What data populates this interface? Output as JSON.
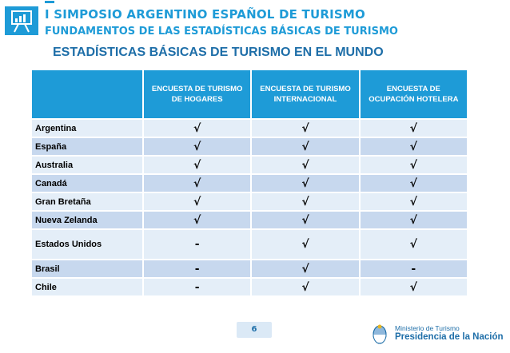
{
  "header": {
    "title": "I SIMPOSIO ARGENTINO ESPAÑOL DE TURISMO",
    "subtitle": "FUNDAMENTOS DE LAS ESTADÍSTICAS BÁSICAS DE TURISMO",
    "logo_icon": "chart-presentation-icon",
    "accent_color": "#1e9bd7"
  },
  "slide_title": "ESTADÍSTICAS BÁSICAS DE TURISMO EN EL MUNDO",
  "table": {
    "columns": [
      "",
      "ENCUESTA DE TURISMO DE HOGARES",
      "ENCUESTA DE TURISMO INTERNACIONAL",
      "ENCUESTA DE OCUPACIÓN HOTELERA"
    ],
    "rows": [
      [
        "Argentina",
        "√",
        "√",
        "√"
      ],
      [
        "España",
        "√",
        "√",
        "√"
      ],
      [
        "Australia",
        "√",
        "√",
        "√"
      ],
      [
        "Canadá",
        "√",
        "√",
        "√"
      ],
      [
        "Gran Bretaña",
        "√",
        "√",
        "√"
      ],
      [
        "Nueva Zelanda",
        "√",
        "√",
        "√"
      ],
      [
        "Estados Unidos",
        "-",
        "√",
        "√"
      ],
      [
        "Brasil",
        "-",
        "√",
        "-"
      ],
      [
        "Chile",
        "-",
        "√",
        "√"
      ]
    ]
  },
  "footer": {
    "page_number": "6",
    "ministry": "Ministerio de Turismo",
    "presidency": "Presidencia de la Nación",
    "emblem_icon": "coat-of-arms-icon"
  }
}
